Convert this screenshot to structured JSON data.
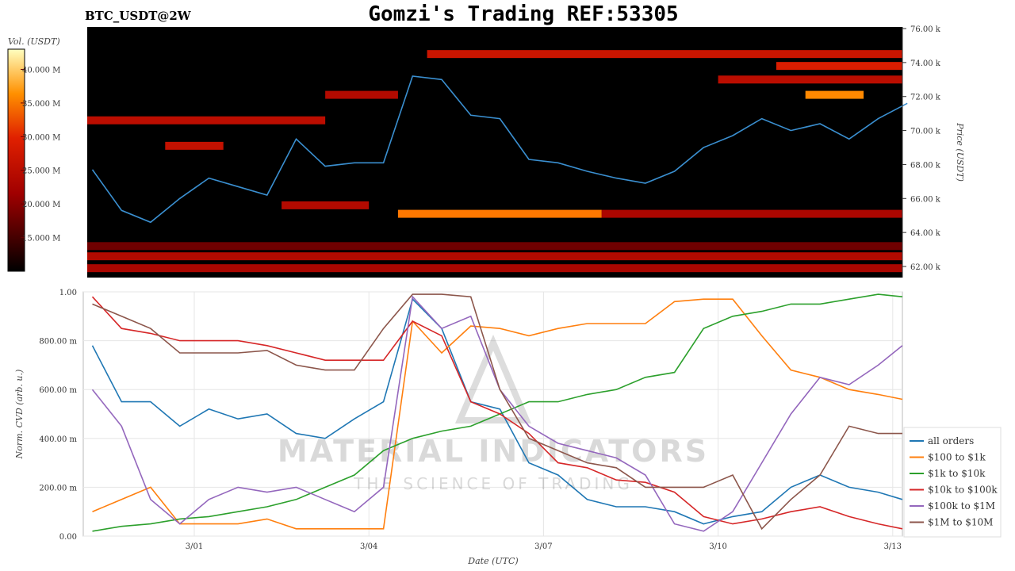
{
  "header": {
    "symbol": "BTC_USDT@2W",
    "title": "Gomzi's Trading REF:53305"
  },
  "watermark": {
    "brand": "MATERIAL INDICATORS",
    "tagline": "THE SCIENCE OF TRADING"
  },
  "chart_data": [
    {
      "type": "heatmap",
      "title": "BTC_USDT@2W",
      "ylabel": "Price (USDT)",
      "colorbar_label": "Vol. (USDT)",
      "ylim": [
        61000,
        76000
      ],
      "y_ticks": [
        "62.00 k",
        "64.00 k",
        "66.00 k",
        "68.00 k",
        "70.00 k",
        "72.00 k",
        "74.00 k",
        "76.00 k"
      ],
      "colorbar_ticks": [
        "15.000 M",
        "20.000 M",
        "25.000 M",
        "30.000 M",
        "35.000 M",
        "40.000 M"
      ],
      "colorbar_range_M": [
        10,
        43
      ],
      "xlim": [
        "02-28 02:00",
        "03-13 06:00"
      ],
      "bands": [
        {
          "price": 74500,
          "start": "03-05 00:00",
          "end": "03-13 06:00",
          "vol_M": 27
        },
        {
          "price": 73800,
          "start": "03-11 00:00",
          "end": "03-13 06:00",
          "vol_M": 29
        },
        {
          "price": 73000,
          "start": "03-10 00:00",
          "end": "03-13 06:00",
          "vol_M": 25
        },
        {
          "price": 72100,
          "start": "03-11 12:00",
          "end": "03-12 12:00",
          "vol_M": 36
        },
        {
          "price": 72100,
          "start": "03-03 06:00",
          "end": "03-04 12:00",
          "vol_M": 24
        },
        {
          "price": 70600,
          "start": "02-28 02:00",
          "end": "03-03 06:00",
          "vol_M": 25
        },
        {
          "price": 69100,
          "start": "02-29 12:00",
          "end": "03-01 12:00",
          "vol_M": 26
        },
        {
          "price": 65600,
          "start": "03-02 12:00",
          "end": "03-04 00:00",
          "vol_M": 24
        },
        {
          "price": 65100,
          "start": "03-04 12:00",
          "end": "03-08 00:00",
          "vol_M": 35
        },
        {
          "price": 65100,
          "start": "03-08 00:00",
          "end": "03-13 06:00",
          "vol_M": 23
        },
        {
          "price": 63200,
          "start": "02-28 02:00",
          "end": "03-13 06:00",
          "vol_M": 18
        },
        {
          "price": 62600,
          "start": "02-28 02:00",
          "end": "03-13 06:00",
          "vol_M": 24
        },
        {
          "price": 61900,
          "start": "02-28 02:00",
          "end": "03-13 06:00",
          "vol_M": 23
        }
      ],
      "price_series": {
        "x": [
          "02-28 06:00",
          "02-28 18:00",
          "02-29 06:00",
          "02-29 18:00",
          "03-01 06:00",
          "03-01 18:00",
          "03-02 06:00",
          "03-02 18:00",
          "03-03 06:00",
          "03-03 18:00",
          "03-04 06:00",
          "03-04 18:00",
          "03-05 06:00",
          "03-05 18:00",
          "03-06 06:00",
          "03-06 18:00",
          "03-07 06:00",
          "03-07 18:00",
          "03-08 06:00",
          "03-08 18:00",
          "03-09 06:00",
          "03-09 18:00",
          "03-10 06:00",
          "03-10 18:00",
          "03-11 06:00",
          "03-11 18:00",
          "03-12 06:00",
          "03-12 18:00",
          "03-13 06:00"
        ],
        "y": [
          67700,
          65300,
          64600,
          66000,
          67200,
          66700,
          66200,
          69500,
          67900,
          68100,
          68100,
          73200,
          73000,
          70900,
          70700,
          68300,
          68100,
          67600,
          67200,
          66900,
          67600,
          69000,
          69700,
          70700,
          70000,
          70400,
          69500,
          70700,
          71600
        ]
      }
    },
    {
      "type": "line",
      "xlabel": "Date (UTC)",
      "ylabel": "Norm. CVD (arb. u.)",
      "ylim": [
        0,
        1
      ],
      "x_ticks": [
        "3/01",
        "3/04",
        "3/07",
        "3/10",
        "3/13"
      ],
      "y_ticks": [
        "0.00",
        "200.00 m",
        "400.00 m",
        "600.00 m",
        "800.00 m",
        "1.00"
      ],
      "legend_position": "lower-right",
      "grid": true,
      "x": [
        "02-28 06:00",
        "02-28 18:00",
        "02-29 06:00",
        "02-29 18:00",
        "03-01 06:00",
        "03-01 18:00",
        "03-02 06:00",
        "03-02 18:00",
        "03-03 06:00",
        "03-03 18:00",
        "03-04 06:00",
        "03-04 18:00",
        "03-05 06:00",
        "03-05 18:00",
        "03-06 06:00",
        "03-06 18:00",
        "03-07 06:00",
        "03-07 18:00",
        "03-08 06:00",
        "03-08 18:00",
        "03-09 06:00",
        "03-09 18:00",
        "03-10 06:00",
        "03-10 18:00",
        "03-11 06:00",
        "03-11 18:00",
        "03-12 06:00",
        "03-12 18:00",
        "03-13 06:00"
      ],
      "series": [
        {
          "name": "all orders",
          "color": "#1f77b4",
          "values": [
            0.78,
            0.55,
            0.55,
            0.45,
            0.52,
            0.48,
            0.5,
            0.42,
            0.4,
            0.48,
            0.55,
            0.97,
            0.85,
            0.55,
            0.52,
            0.3,
            0.25,
            0.15,
            0.12,
            0.12,
            0.1,
            0.05,
            0.08,
            0.1,
            0.2,
            0.25,
            0.2,
            0.18,
            0.15
          ]
        },
        {
          "name": "$100 to $1k",
          "color": "#ff7f0e",
          "values": [
            0.1,
            0.15,
            0.2,
            0.05,
            0.05,
            0.05,
            0.07,
            0.03,
            0.03,
            0.03,
            0.03,
            0.88,
            0.75,
            0.86,
            0.85,
            0.82,
            0.85,
            0.87,
            0.87,
            0.87,
            0.96,
            0.97,
            0.97,
            0.82,
            0.68,
            0.65,
            0.6,
            0.58,
            0.56
          ]
        },
        {
          "name": "$1k to $10k",
          "color": "#2ca02c",
          "values": [
            0.02,
            0.04,
            0.05,
            0.07,
            0.08,
            0.1,
            0.12,
            0.15,
            0.2,
            0.25,
            0.35,
            0.4,
            0.43,
            0.45,
            0.5,
            0.55,
            0.55,
            0.58,
            0.6,
            0.65,
            0.67,
            0.85,
            0.9,
            0.92,
            0.95,
            0.95,
            0.97,
            0.99,
            0.98
          ]
        },
        {
          "name": "$10k to $100k",
          "color": "#d62728",
          "values": [
            0.98,
            0.85,
            0.83,
            0.8,
            0.8,
            0.8,
            0.78,
            0.75,
            0.72,
            0.72,
            0.72,
            0.88,
            0.82,
            0.55,
            0.5,
            0.42,
            0.3,
            0.28,
            0.23,
            0.22,
            0.18,
            0.08,
            0.05,
            0.07,
            0.1,
            0.12,
            0.08,
            0.05,
            0.03
          ]
        },
        {
          "name": "$100k to $1M",
          "color": "#9467bd",
          "values": [
            0.6,
            0.45,
            0.15,
            0.05,
            0.15,
            0.2,
            0.18,
            0.2,
            0.15,
            0.1,
            0.2,
            0.98,
            0.85,
            0.9,
            0.6,
            0.45,
            0.38,
            0.35,
            0.32,
            0.25,
            0.05,
            0.02,
            0.1,
            0.3,
            0.5,
            0.65,
            0.62,
            0.7,
            0.78
          ]
        },
        {
          "name": "$1M to $10M",
          "color": "#8c564b",
          "values": [
            0.95,
            0.9,
            0.85,
            0.75,
            0.75,
            0.75,
            0.76,
            0.7,
            0.68,
            0.68,
            0.85,
            0.99,
            0.99,
            0.98,
            0.6,
            0.4,
            0.35,
            0.3,
            0.28,
            0.2,
            0.2,
            0.2,
            0.25,
            0.03,
            0.15,
            0.25,
            0.45,
            0.42,
            0.42
          ]
        }
      ]
    }
  ]
}
